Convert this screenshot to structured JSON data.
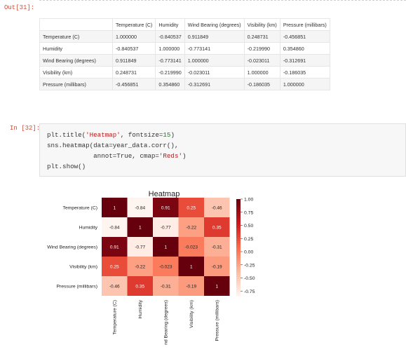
{
  "out_prompt": "Out[31]:",
  "in_prompt": "In [32]:",
  "table": {
    "columns": [
      "",
      "Temperature (C)",
      "Humidity",
      "Wind Bearing (degrees)",
      "Visibility (km)",
      "Pressure (millibars)"
    ],
    "rows": [
      {
        "label": "Temperature (C)",
        "values": [
          "1.000000",
          "-0.840537",
          "0.911849",
          "0.248731",
          "-0.456851"
        ]
      },
      {
        "label": "Humidity",
        "values": [
          "-0.840537",
          "1.000000",
          "-0.773141",
          "-0.219990",
          "0.354860"
        ]
      },
      {
        "label": "Wind Bearing (degrees)",
        "values": [
          "0.911849",
          "-0.773141",
          "1.000000",
          "-0.023011",
          "-0.312691"
        ]
      },
      {
        "label": "Visibility (km)",
        "values": [
          "0.248731",
          "-0.219990",
          "-0.023011",
          "1.000000",
          "-0.186035"
        ]
      },
      {
        "label": "Pressure (millibars)",
        "values": [
          "-0.456851",
          "0.354860",
          "-0.312691",
          "-0.186035",
          "1.000000"
        ]
      }
    ]
  },
  "code": {
    "line1": {
      "a": "plt.title(",
      "s": "'Heatmap'",
      "b": ", fontsize=",
      "n": "15",
      "c": ")"
    },
    "line2": "sns.heatmap(data=year_data.corr(),",
    "line3": {
      "a": "            annot=True, cmap=",
      "s": "'Reds'",
      "c": ")"
    },
    "line4": "plt.show()"
  },
  "chart_data": {
    "type": "heatmap",
    "title": "Heatmap",
    "labels": [
      "Temperature (C)",
      "Humidity",
      "Wind Bearing (degrees)",
      "Visibility (km)",
      "Pressure (millibars)"
    ],
    "x_tick_labels": [
      "Temperature (C)",
      "Humidity",
      "nd Bearing (degrees)",
      "Visibility (km)",
      "Pressure (millibars)"
    ],
    "values": [
      [
        1.0,
        -0.84,
        0.91,
        0.25,
        -0.46
      ],
      [
        -0.84,
        1.0,
        -0.77,
        -0.22,
        0.35
      ],
      [
        0.91,
        -0.77,
        1.0,
        -0.023,
        -0.31
      ],
      [
        0.25,
        -0.22,
        -0.023,
        1.0,
        -0.19
      ],
      [
        -0.46,
        0.35,
        -0.31,
        -0.19,
        1.0
      ]
    ],
    "annotations": [
      [
        "1",
        "-0.84",
        "0.91",
        "0.25",
        "-0.46"
      ],
      [
        "-0.84",
        "1",
        "-0.77",
        "-0.22",
        "0.35"
      ],
      [
        "0.91",
        "-0.77",
        "1",
        "-0.023",
        "-0.31"
      ],
      [
        "0.25",
        "-0.22",
        "-0.023",
        "1",
        "-0.19"
      ],
      [
        "-0.46",
        "0.35",
        "-0.31",
        "-0.19",
        "1"
      ]
    ],
    "cmap": "Reds",
    "colorbar": {
      "ticks": [
        "1.00",
        "0.75",
        "0.50",
        "0.25",
        "0.00",
        "-0.25",
        "-0.50",
        "-0.75"
      ],
      "tick_values": [
        1.0,
        0.75,
        0.5,
        0.25,
        0.0,
        -0.25,
        -0.5,
        -0.75
      ],
      "vmin": -0.84,
      "vmax": 1.0
    }
  }
}
